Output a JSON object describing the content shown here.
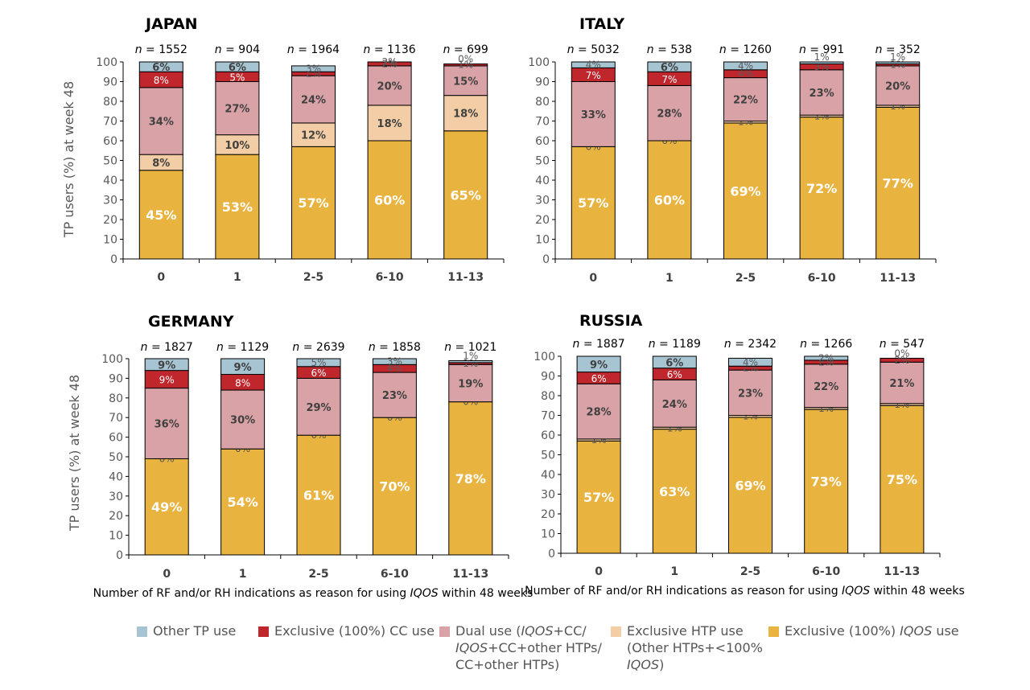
{
  "colors": {
    "other_tp": "#a7c4d2",
    "exclusive_cc": "#c0272d",
    "dual_use": "#d8a2a6",
    "exclusive_htp": "#f2cda6",
    "exclusive_iqos": "#e9b33f"
  },
  "legend": [
    {
      "key": "other_tp",
      "parts": [
        {
          "text": "Other TP use",
          "italic": false
        }
      ]
    },
    {
      "key": "exclusive_cc",
      "parts": [
        {
          "text": "Exclusive (100%) CC use",
          "italic": false
        }
      ]
    },
    {
      "key": "dual_use",
      "parts": [
        {
          "text": "Dual use (",
          "italic": false
        },
        {
          "text": "IQOS",
          "italic": true
        },
        {
          "text": "+CC/",
          "italic": false
        },
        {
          "br": true
        },
        {
          "text": "IQOS",
          "italic": true
        },
        {
          "text": "+CC+other HTPs/",
          "italic": false
        },
        {
          "br": true
        },
        {
          "text": "CC+other HTPs)",
          "italic": false
        }
      ]
    },
    {
      "key": "exclusive_htp",
      "parts": [
        {
          "text": "Exclusive HTP use",
          "italic": false
        },
        {
          "br": true
        },
        {
          "text": "(Other HTPs+<100%",
          "italic": false
        },
        {
          "br": true
        },
        {
          "text": "IQOS",
          "italic": true
        },
        {
          "text": ")",
          "italic": false
        }
      ]
    },
    {
      "key": "exclusive_iqos",
      "parts": [
        {
          "text": "Exclusive (100%) ",
          "italic": false
        },
        {
          "text": "IQOS",
          "italic": true
        },
        {
          "text": " use",
          "italic": false
        }
      ]
    }
  ],
  "chart_data": [
    {
      "type": "bar",
      "stacked": true,
      "title": "JAPAN",
      "ylabel": "TP users (%) at week 48",
      "xlabel": "",
      "ylim": [
        0,
        100
      ],
      "yticks": [
        0,
        10,
        20,
        30,
        40,
        50,
        60,
        70,
        80,
        90,
        100
      ],
      "categories": [
        "0",
        "1",
        "2-5",
        "6-10",
        "11-13"
      ],
      "n_labels": [
        "1552",
        "904",
        "1964",
        "1136",
        "699"
      ],
      "series": [
        {
          "key": "exclusive_iqos",
          "name": "Exclusive (100%) IQOS use",
          "values": [
            45,
            53,
            57,
            60,
            65
          ],
          "labels": [
            "45%",
            "53%",
            "57%",
            "60%",
            "65%"
          ]
        },
        {
          "key": "exclusive_htp",
          "name": "Exclusive HTP use",
          "values": [
            8,
            10,
            12,
            18,
            18
          ],
          "labels": [
            "8%",
            "10%",
            "12%",
            "18%",
            "18%"
          ]
        },
        {
          "key": "dual_use",
          "name": "Dual use",
          "values": [
            34,
            27,
            24,
            20,
            15
          ],
          "labels": [
            "34%",
            "27%",
            "24%",
            "20%",
            "15%"
          ]
        },
        {
          "key": "exclusive_cc",
          "name": "Exclusive (100%) CC use",
          "values": [
            8,
            5,
            2,
            2,
            1
          ],
          "labels": [
            "8%",
            "5%",
            "2%",
            "2%",
            "1%"
          ]
        },
        {
          "key": "other_tp",
          "name": "Other TP use",
          "values": [
            6,
            6,
            3,
            2,
            0
          ],
          "labels": [
            "6%",
            "6%",
            "3%",
            "2%",
            "0%"
          ]
        }
      ]
    },
    {
      "type": "bar",
      "stacked": true,
      "title": "ITALY",
      "ylabel": "",
      "xlabel": "",
      "ylim": [
        0,
        100
      ],
      "yticks": [
        0,
        10,
        20,
        30,
        40,
        50,
        60,
        70,
        80,
        90,
        100
      ],
      "categories": [
        "0",
        "1",
        "2-5",
        "6-10",
        "11-13"
      ],
      "n_labels": [
        "5032",
        "538",
        "1260",
        "991",
        "352"
      ],
      "series": [
        {
          "key": "exclusive_iqos",
          "name": "Exclusive (100%) IQOS use",
          "values": [
            57,
            60,
            69,
            72,
            77
          ],
          "labels": [
            "57%",
            "60%",
            "69%",
            "72%",
            "77%"
          ]
        },
        {
          "key": "exclusive_htp",
          "name": "Exclusive HTP use",
          "values": [
            0,
            0,
            1,
            1,
            1
          ],
          "labels": [
            "0%",
            "0%",
            "1%",
            "1%",
            "1%"
          ]
        },
        {
          "key": "dual_use",
          "name": "Dual use",
          "values": [
            33,
            28,
            22,
            23,
            20
          ],
          "labels": [
            "33%",
            "28%",
            "22%",
            "23%",
            "20%"
          ]
        },
        {
          "key": "exclusive_cc",
          "name": "Exclusive (100%) CC use",
          "values": [
            7,
            7,
            4,
            3,
            1
          ],
          "labels": [
            "7%",
            "7%",
            "4%",
            "3%",
            "1%"
          ]
        },
        {
          "key": "other_tp",
          "name": "Other TP use",
          "values": [
            4,
            6,
            4,
            1,
            1
          ],
          "labels": [
            "4%",
            "6%",
            "4%",
            "1%",
            "1%"
          ]
        }
      ]
    },
    {
      "type": "bar",
      "stacked": true,
      "title": "GERMANY",
      "ylabel": "TP users (%) at week 48",
      "xlabel": "Number of RF and/or RH indications as reason for using IQOS within 48 weeks",
      "ylim": [
        0,
        100
      ],
      "yticks": [
        0,
        10,
        20,
        30,
        40,
        50,
        60,
        70,
        80,
        90,
        100
      ],
      "categories": [
        "0",
        "1",
        "2-5",
        "6-10",
        "11-13"
      ],
      "n_labels": [
        "1827",
        "1129",
        "2639",
        "1858",
        "1021"
      ],
      "series": [
        {
          "key": "exclusive_iqos",
          "name": "Exclusive (100%) IQOS use",
          "values": [
            49,
            54,
            61,
            70,
            78
          ],
          "labels": [
            "49%",
            "54%",
            "61%",
            "70%",
            "78%"
          ]
        },
        {
          "key": "exclusive_htp",
          "name": "Exclusive HTP use",
          "values": [
            0,
            0,
            0,
            0,
            0
          ],
          "labels": [
            "0%",
            "0%",
            "0%",
            "0%",
            "0%"
          ]
        },
        {
          "key": "dual_use",
          "name": "Dual use",
          "values": [
            36,
            30,
            29,
            23,
            19
          ],
          "labels": [
            "36%",
            "30%",
            "29%",
            "23%",
            "19%"
          ]
        },
        {
          "key": "exclusive_cc",
          "name": "Exclusive (100%) CC use",
          "values": [
            9,
            8,
            6,
            4,
            1
          ],
          "labels": [
            "9%",
            "8%",
            "6%",
            "4%",
            "1%"
          ]
        },
        {
          "key": "other_tp",
          "name": "Other TP use",
          "values": [
            9,
            9,
            5,
            3,
            1
          ],
          "labels": [
            "9%",
            "9%",
            "5%",
            "3%",
            "1%"
          ]
        }
      ]
    },
    {
      "type": "bar",
      "stacked": true,
      "title": "RUSSIA",
      "ylabel": "",
      "xlabel": "Number of RF and/or RH indications as reason for using IQOS within 48 weeks",
      "ylim": [
        0,
        100
      ],
      "yticks": [
        0,
        10,
        20,
        30,
        40,
        50,
        60,
        70,
        80,
        90,
        100
      ],
      "categories": [
        "0",
        "1",
        "2-5",
        "6-10",
        "11-13"
      ],
      "n_labels": [
        "1887",
        "1189",
        "2342",
        "1266",
        "547"
      ],
      "series": [
        {
          "key": "exclusive_iqos",
          "name": "Exclusive (100%) IQOS use",
          "values": [
            57,
            63,
            69,
            73,
            75
          ],
          "labels": [
            "57%",
            "63%",
            "69%",
            "73%",
            "75%"
          ]
        },
        {
          "key": "exclusive_htp",
          "name": "Exclusive HTP use",
          "values": [
            1,
            1,
            1,
            1,
            1
          ],
          "labels": [
            "1%",
            "1%",
            "1%",
            "1%",
            "1%"
          ]
        },
        {
          "key": "dual_use",
          "name": "Dual use",
          "values": [
            28,
            24,
            23,
            22,
            21
          ],
          "labels": [
            "28%",
            "24%",
            "23%",
            "22%",
            "21%"
          ]
        },
        {
          "key": "exclusive_cc",
          "name": "Exclusive (100%) CC use",
          "values": [
            6,
            6,
            2,
            2,
            2
          ],
          "labels": [
            "6%",
            "6%",
            "2%",
            "2%",
            "2%"
          ]
        },
        {
          "key": "other_tp",
          "name": "Other TP use",
          "values": [
            9,
            6,
            4,
            2,
            0
          ],
          "labels": [
            "9%",
            "6%",
            "4%",
            "2%",
            "0%"
          ]
        }
      ]
    }
  ]
}
